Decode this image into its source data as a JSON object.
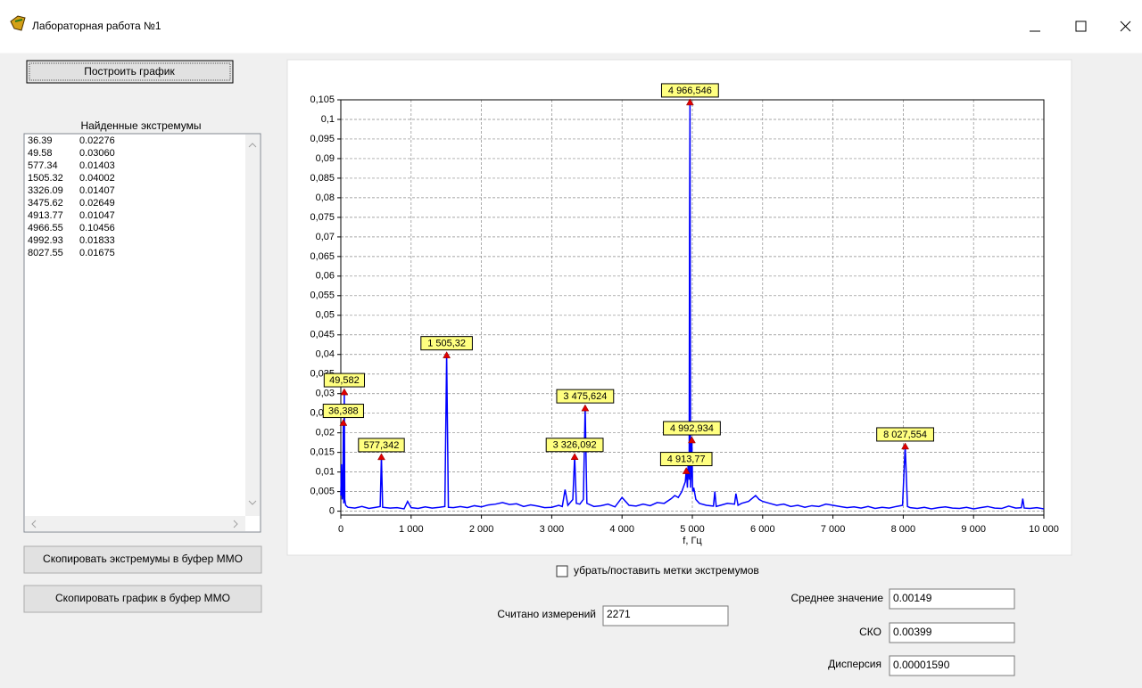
{
  "window": {
    "title": "Лабораторная работа №1"
  },
  "buttons": {
    "build": "Построить график",
    "copy_extrema": "Скопировать экстремумы в буфер MMO",
    "copy_chart": "Скопировать график в буфер MMO"
  },
  "extrema_list": {
    "title": "Найденные экстремумы",
    "rows": [
      [
        "36.39",
        "0.02276"
      ],
      [
        "49.58",
        "0.03060"
      ],
      [
        "577.34",
        "0.01403"
      ],
      [
        "1505.32",
        "0.04002"
      ],
      [
        "3326.09",
        "0.01407"
      ],
      [
        "3475.62",
        "0.02649"
      ],
      [
        "4913.77",
        "0.01047"
      ],
      [
        "4966.55",
        "0.10456"
      ],
      [
        "4992.93",
        "0.01833"
      ],
      [
        "8027.55",
        "0.01675"
      ]
    ]
  },
  "chart_data": {
    "type": "line",
    "xlabel": "f, Гц",
    "color": "#0000ff",
    "grid": true,
    "xlim": [
      0,
      10000
    ],
    "ylim": [
      -0.001,
      0.105
    ],
    "xticks": [
      0,
      {
        "value": 1000,
        "label": "1 000"
      },
      {
        "value": 2000,
        "label": "2 000"
      },
      {
        "value": 3000,
        "label": "3 000"
      },
      {
        "value": 4000,
        "label": "4 000"
      },
      {
        "value": 5000,
        "label": "5 000"
      },
      {
        "value": 6000,
        "label": "6 000"
      },
      {
        "value": 7000,
        "label": "7 000"
      },
      {
        "value": 8000,
        "label": "8 000"
      },
      {
        "value": 9000,
        "label": "9 000"
      },
      {
        "value": 10000,
        "label": "10 000"
      }
    ],
    "yticks": [
      0,
      {
        "value": 0.005,
        "label": "0,005"
      },
      {
        "value": 0.01,
        "label": "0,01"
      },
      {
        "value": 0.015,
        "label": "0,015"
      },
      {
        "value": 0.02,
        "label": "0,02"
      },
      {
        "value": 0.025,
        "label": "0,025"
      },
      {
        "value": 0.03,
        "label": "0,03"
      },
      {
        "value": 0.035,
        "label": "0,035"
      },
      {
        "value": 0.04,
        "label": "0,04"
      },
      {
        "value": 0.045,
        "label": "0,045"
      },
      {
        "value": 0.05,
        "label": "0,05"
      },
      {
        "value": 0.055,
        "label": "0,055"
      },
      {
        "value": 0.06,
        "label": "0,06"
      },
      {
        "value": 0.065,
        "label": "0,065"
      },
      {
        "value": 0.07,
        "label": "0,07"
      },
      {
        "value": 0.075,
        "label": "0,075"
      },
      {
        "value": 0.08,
        "label": "0,08"
      },
      {
        "value": 0.085,
        "label": "0,085"
      },
      {
        "value": 0.09,
        "label": "0,09"
      },
      {
        "value": 0.095,
        "label": "0,095"
      },
      {
        "value": 0.1,
        "label": "0,1"
      },
      {
        "value": 0.105,
        "label": "0,105"
      }
    ],
    "x": [
      0,
      10,
      20,
      30,
      36.39,
      42,
      49.58,
      56,
      70,
      100,
      200,
      300,
      400,
      500,
      560,
      577.34,
      595,
      700,
      800,
      900,
      950,
      1000,
      1100,
      1200,
      1300,
      1400,
      1480,
      1505.32,
      1530,
      1600,
      1700,
      1800,
      1900,
      2000,
      2100,
      2200,
      2300,
      2400,
      2500,
      2600,
      2700,
      2800,
      2900,
      3000,
      3100,
      3150,
      3190,
      3230,
      3300,
      3326.09,
      3350,
      3400,
      3450,
      3475.62,
      3500,
      3600,
      3700,
      3800,
      3900,
      4000,
      4100,
      4200,
      4300,
      4400,
      4500,
      4600,
      4700,
      4750,
      4800,
      4850,
      4880,
      4900,
      4913.77,
      4930,
      4945,
      4955,
      4960,
      4966.55,
      4975,
      4985,
      4992.93,
      5005,
      5020,
      5050,
      5100,
      5200,
      5300,
      5320,
      5340,
      5400,
      5500,
      5600,
      5620,
      5650,
      5700,
      5800,
      5900,
      5950,
      6000,
      6100,
      6200,
      6300,
      6400,
      6500,
      6600,
      6700,
      6800,
      6900,
      7000,
      7100,
      7200,
      7300,
      7400,
      7500,
      7600,
      7700,
      7800,
      7900,
      7990,
      8027.55,
      8060,
      8100,
      8200,
      8300,
      8400,
      8500,
      8600,
      8700,
      8800,
      8900,
      9000,
      9100,
      9200,
      9300,
      9400,
      9500,
      9600,
      9680,
      9700,
      9720,
      9800,
      9900,
      10000
    ],
    "values": [
      0.004,
      0.012,
      0.003,
      0.006,
      0.02276,
      0.002,
      0.0306,
      0.003,
      0.0015,
      0.001,
      0.0008,
      0.0012,
      0.0007,
      0.001,
      0.0012,
      0.01403,
      0.001,
      0.0008,
      0.0009,
      0.0006,
      0.0025,
      0.0009,
      0.0007,
      0.0011,
      0.0008,
      0.001,
      0.0012,
      0.04002,
      0.001,
      0.0009,
      0.0012,
      0.0009,
      0.0014,
      0.0011,
      0.0016,
      0.0018,
      0.0022,
      0.0017,
      0.0019,
      0.0012,
      0.0016,
      0.0013,
      0.0009,
      0.001,
      0.0015,
      0.0012,
      0.0055,
      0.0015,
      0.003,
      0.01407,
      0.002,
      0.0018,
      0.003,
      0.02649,
      0.002,
      0.0012,
      0.0014,
      0.0018,
      0.0011,
      0.0035,
      0.0015,
      0.0013,
      0.0018,
      0.0014,
      0.0022,
      0.002,
      0.0032,
      0.004,
      0.0035,
      0.005,
      0.0065,
      0.0075,
      0.01047,
      0.006,
      0.015,
      0.008,
      0.071,
      0.10456,
      0.006,
      0.01,
      0.01833,
      0.005,
      0.006,
      0.003,
      0.002,
      0.0015,
      0.0013,
      0.005,
      0.0012,
      0.0015,
      0.002,
      0.0018,
      0.0045,
      0.0015,
      0.002,
      0.0025,
      0.004,
      0.003,
      0.0025,
      0.002,
      0.0015,
      0.0018,
      0.0012,
      0.0015,
      0.001,
      0.0014,
      0.0012,
      0.0018,
      0.0015,
      0.0012,
      0.0009,
      0.0011,
      0.0008,
      0.0012,
      0.0007,
      0.001,
      0.0008,
      0.0012,
      0.0015,
      0.01675,
      0.0012,
      0.0009,
      0.0007,
      0.001,
      0.0006,
      0.0009,
      0.0011,
      0.0008,
      0.0007,
      0.001,
      0.0006,
      0.0009,
      0.0012,
      0.0008,
      0.0007,
      0.0013,
      0.0008,
      0.0009,
      0.0032,
      0.0008,
      0.0007,
      0.0009,
      0.0006
    ],
    "annotations": [
      {
        "x": 36.388,
        "y": 0.02276,
        "label": "36,388"
      },
      {
        "x": 49.582,
        "y": 0.0306,
        "label": "49,582"
      },
      {
        "x": 577.342,
        "y": 0.01403,
        "label": "577,342"
      },
      {
        "x": 1505.32,
        "y": 0.04002,
        "label": "1 505,32"
      },
      {
        "x": 3326.092,
        "y": 0.01407,
        "label": "3 326,092"
      },
      {
        "x": 3475.624,
        "y": 0.02649,
        "label": "3 475,624"
      },
      {
        "x": 4913.77,
        "y": 0.01047,
        "label": "4 913,77"
      },
      {
        "x": 4966.546,
        "y": 0.10456,
        "label": "4 966,546"
      },
      {
        "x": 4992.934,
        "y": 0.01833,
        "label": "4 992,934"
      },
      {
        "x": 8027.554,
        "y": 0.01675,
        "label": "8 027,554"
      }
    ]
  },
  "controls": {
    "checkbox_label": "убрать/поставить метки экстремумов",
    "count": {
      "label": "Считано измерений",
      "value": "2271"
    },
    "mean": {
      "label": "Среднее значение",
      "value": "0.00149"
    },
    "std": {
      "label": "СКО",
      "value": "0.00399"
    },
    "variance": {
      "label": "Дисперсия",
      "value": "0.00001590"
    }
  }
}
